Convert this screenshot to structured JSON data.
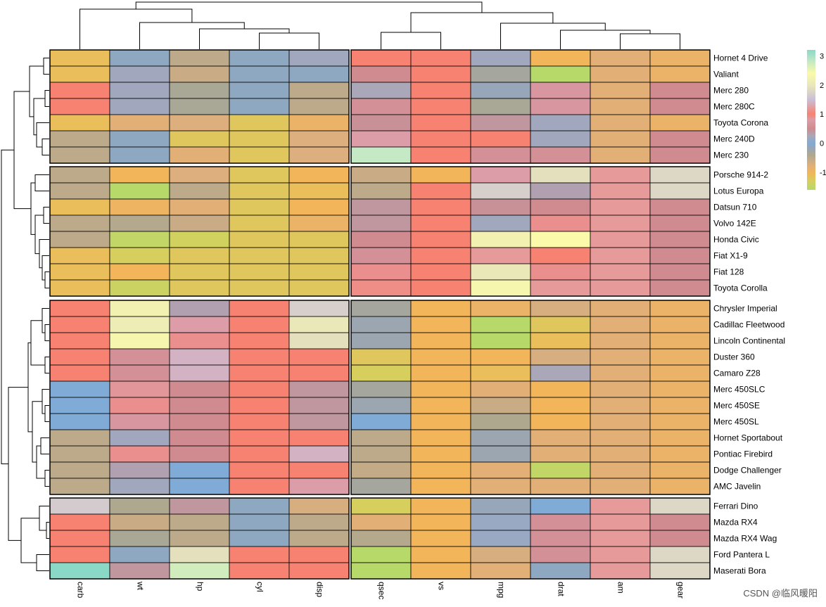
{
  "chart_data": {
    "type": "heatmap",
    "title": "",
    "columns": [
      "carb",
      "wt",
      "hp",
      "cyl",
      "disp",
      "qsec",
      "vs",
      "mpg",
      "drat",
      "am",
      "gear"
    ],
    "column_split_after": 5,
    "rows": [
      "Hornet 4 Drive",
      "Valiant",
      "Merc 280",
      "Merc 280C",
      "Toyota Corona",
      "Merc 240D",
      "Merc 230",
      "Porsche 914-2",
      "Lotus Europa",
      "Datsun 710",
      "Volvo 142E",
      "Honda Civic",
      "Fiat X1-9",
      "Fiat 128",
      "Toyota Corolla",
      "Chrysler Imperial",
      "Cadillac Fleetwood",
      "Lincoln Continental",
      "Duster 360",
      "Camaro Z28",
      "Merc 450SLC",
      "Merc 450SE",
      "Merc 450SL",
      "Hornet Sportabout",
      "Pontiac Firebird",
      "Dodge Challenger",
      "AMC Javelin",
      "Ferrari Dino",
      "Mazda RX4",
      "Mazda RX4 Wag",
      "Ford Pantera L",
      "Maserati Bora"
    ],
    "row_groups": [
      7,
      8,
      12,
      5
    ],
    "values": [
      [
        -1.1,
        -0.1,
        -0.5,
        -0.1,
        0.2,
        1.0,
        1.0,
        0.2,
        -1.0,
        -0.8,
        -0.9
      ],
      [
        -1.1,
        0.2,
        -0.6,
        -0.1,
        -0.1,
        0.5,
        1.0,
        -0.3,
        -1.6,
        -0.8,
        -0.9
      ],
      [
        1.0,
        0.2,
        -0.35,
        -0.1,
        -0.5,
        0.25,
        1.0,
        -0.15,
        0.7,
        -0.8,
        0.5
      ],
      [
        1.0,
        0.2,
        -0.35,
        -0.1,
        -0.5,
        0.6,
        1.0,
        -0.35,
        0.7,
        -0.8,
        0.5
      ],
      [
        -1.1,
        -0.8,
        -0.75,
        -1.2,
        -0.9,
        0.45,
        1.0,
        0.4,
        0.2,
        -0.8,
        -0.9
      ],
      [
        -0.5,
        -0.1,
        -1.2,
        -1.2,
        -0.75,
        0.8,
        1.0,
        1.0,
        0.2,
        -0.8,
        0.5
      ],
      [
        -0.5,
        -0.1,
        -0.8,
        -1.2,
        -0.75,
        2.8,
        1.0,
        0.6,
        0.6,
        -0.8,
        0.5
      ],
      [
        -0.5,
        -1.0,
        -0.75,
        -1.2,
        -1.0,
        -0.6,
        -1.0,
        0.8,
        1.9,
        1.2,
        1.8
      ],
      [
        -0.5,
        -1.6,
        -0.5,
        -1.2,
        -1.1,
        -0.5,
        1.0,
        1.7,
        0.3,
        1.2,
        1.8
      ],
      [
        -1.1,
        -0.95,
        -0.8,
        -1.2,
        -1.0,
        0.4,
        1.0,
        0.45,
        0.5,
        1.2,
        0.5
      ],
      [
        -0.5,
        -0.45,
        -0.6,
        -1.2,
        -0.9,
        0.4,
        1.0,
        0.2,
        0.9,
        1.2,
        0.5
      ],
      [
        -0.5,
        -1.5,
        -1.35,
        -1.2,
        -1.2,
        0.5,
        1.0,
        2.2,
        2.4,
        1.2,
        0.5
      ],
      [
        -1.1,
        -1.3,
        -1.2,
        -1.2,
        -1.2,
        0.6,
        1.0,
        1.2,
        1.0,
        1.2,
        0.5
      ],
      [
        -1.1,
        -1.0,
        -1.2,
        -1.2,
        -1.2,
        0.9,
        1.0,
        2.0,
        0.9,
        1.2,
        0.5
      ],
      [
        -1.1,
        -1.4,
        -1.2,
        -1.2,
        -1.2,
        1.1,
        1.0,
        2.3,
        1.2,
        1.2,
        0.5
      ],
      [
        1.0,
        2.2,
        0.3,
        1.0,
        1.7,
        -0.3,
        -1.0,
        -0.9,
        -0.7,
        -0.8,
        -0.9
      ],
      [
        1.0,
        2.1,
        0.8,
        1.0,
        2.0,
        -0.2,
        -1.0,
        -1.6,
        -1.2,
        -0.8,
        -0.9
      ],
      [
        1.0,
        2.3,
        0.9,
        1.0,
        1.9,
        -0.2,
        -1.0,
        -1.6,
        -1.1,
        -0.8,
        -0.9
      ],
      [
        1.0,
        0.6,
        1.4,
        1.0,
        1.0,
        -1.2,
        -1.0,
        -1.0,
        -0.7,
        -0.8,
        -0.9
      ],
      [
        1.0,
        0.6,
        1.4,
        1.0,
        1.0,
        -1.3,
        -1.0,
        -1.1,
        0.25,
        -0.8,
        -0.9
      ],
      [
        0.0,
        0.85,
        0.5,
        1.0,
        0.4,
        -0.3,
        -1.0,
        -0.8,
        -1.0,
        -0.8,
        -0.9
      ],
      [
        0.0,
        0.9,
        0.5,
        1.0,
        0.4,
        -0.2,
        -1.0,
        -0.6,
        -1.0,
        -0.8,
        -0.9
      ],
      [
        0.0,
        0.7,
        0.5,
        1.0,
        0.4,
        0.0,
        -1.0,
        -0.4,
        -1.0,
        -0.8,
        -0.9
      ],
      [
        -0.5,
        0.2,
        0.5,
        1.0,
        1.0,
        -0.5,
        -1.0,
        -0.2,
        -0.8,
        -0.8,
        -0.9
      ],
      [
        -0.5,
        0.9,
        0.5,
        1.0,
        1.4,
        -0.5,
        -1.0,
        -0.2,
        -0.8,
        -0.8,
        -0.9
      ],
      [
        -0.5,
        0.3,
        0.0,
        1.0,
        1.0,
        -0.55,
        -1.0,
        -0.8,
        -1.5,
        -0.8,
        -0.9
      ],
      [
        -0.5,
        0.2,
        0.0,
        1.0,
        0.8,
        -0.3,
        -1.0,
        -0.8,
        -0.8,
        -0.8,
        -0.9
      ],
      [
        1.65,
        -0.4,
        0.4,
        -0.1,
        -0.7,
        -1.3,
        -1.0,
        -0.15,
        0.0,
        1.2,
        1.8
      ],
      [
        1.0,
        -0.6,
        -0.5,
        -0.1,
        -0.5,
        -0.8,
        -1.0,
        0.15,
        0.6,
        1.2,
        0.5
      ],
      [
        1.0,
        -0.35,
        -0.5,
        -0.1,
        -0.5,
        -0.45,
        -1.0,
        0.15,
        0.6,
        1.2,
        0.5
      ],
      [
        1.0,
        -0.1,
        1.9,
        1.0,
        1.0,
        -1.8,
        -1.0,
        -0.7,
        0.6,
        1.2,
        1.8
      ],
      [
        3.2,
        0.4,
        2.7,
        1.0,
        1.0,
        -1.8,
        -1.0,
        -0.8,
        -0.1,
        1.2,
        1.8
      ]
    ],
    "colorbar": {
      "ticks": [
        3,
        2,
        1,
        0,
        -1
      ],
      "range": [
        -1.6,
        3.2
      ]
    },
    "colors": {
      "stops": [
        [
          -1.6,
          "#b6d96a"
        ],
        [
          -1.3,
          "#d6cf5e"
        ],
        [
          -1.0,
          "#f2b55a"
        ],
        [
          -0.75,
          "#deaf7e"
        ],
        [
          -0.4,
          "#aea88f"
        ],
        [
          -0.15,
          "#97a6b8"
        ],
        [
          0.0,
          "#7fabd6"
        ],
        [
          0.25,
          "#aaa7b8"
        ],
        [
          0.5,
          "#cf8b8f"
        ],
        [
          0.8,
          "#dc9ca8"
        ],
        [
          1.0,
          "#f88271"
        ],
        [
          1.5,
          "#cabfd8"
        ],
        [
          2.0,
          "#eae8b8"
        ],
        [
          2.4,
          "#fafaaa"
        ],
        [
          2.8,
          "#c4e9c4"
        ],
        [
          3.2,
          "#8ad9c6"
        ]
      ],
      "grid": "#000000",
      "tree": "#000000"
    }
  },
  "watermark": "CSDN @临风暖阳"
}
